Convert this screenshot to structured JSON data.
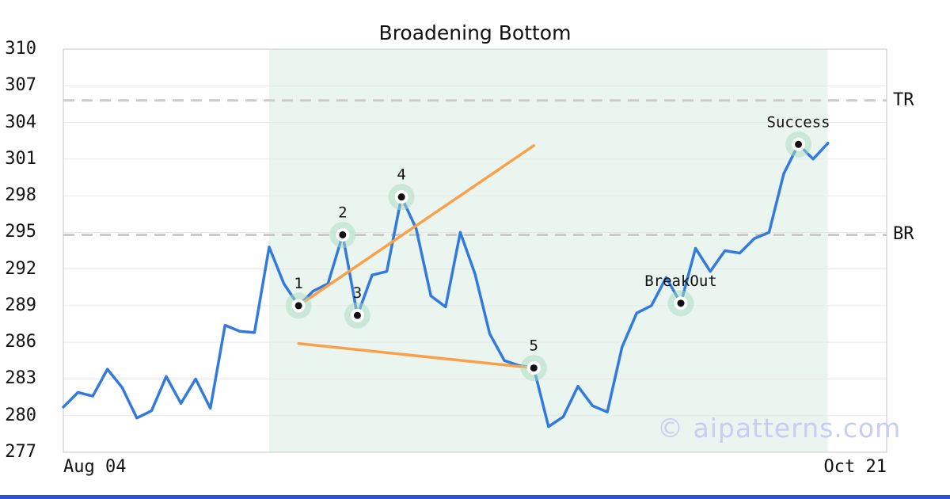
{
  "chart_data": {
    "type": "line",
    "title": "Broadening Bottom",
    "watermark": "© aipatterns.com",
    "x_axis": {
      "start_label": "Aug 04",
      "end_label": "Oct 21",
      "total_days": 56
    },
    "y_axis": {
      "min": 277,
      "max": 310,
      "tick_step": 3,
      "ticks": [
        277,
        280,
        283,
        286,
        289,
        292,
        295,
        298,
        301,
        304,
        307,
        310
      ]
    },
    "levels": [
      {
        "label": "TR",
        "value": 305.8
      },
      {
        "label": "BR",
        "value": 294.8
      }
    ],
    "pattern_region": {
      "start_day": 14,
      "end_day": 52
    },
    "series": {
      "name": "Price",
      "values": [
        280.7,
        281.9,
        281.6,
        283.8,
        282.3,
        279.8,
        280.4,
        283.2,
        281.0,
        283.0,
        280.6,
        287.4,
        286.9,
        286.8,
        293.8,
        290.8,
        289.0,
        290.2,
        290.8,
        294.8,
        288.2,
        291.5,
        291.8,
        297.9,
        295.3,
        289.8,
        288.9,
        295.0,
        291.6,
        286.7,
        284.5,
        284.1,
        283.9,
        279.1,
        279.9,
        282.4,
        280.8,
        280.3,
        285.6,
        288.4,
        289.0,
        291.3,
        289.2,
        293.7,
        291.8,
        293.5,
        293.3,
        294.5,
        295.0,
        299.8,
        302.2,
        301.0,
        302.3
      ]
    },
    "trendlines": [
      {
        "name": "upper-broadening-line",
        "from_day": 16,
        "from_price": 289.0,
        "to_day": 32,
        "to_price": 302.1
      },
      {
        "name": "lower-broadening-line",
        "from_day": 16,
        "from_price": 285.9,
        "to_day": 32,
        "to_price": 283.9
      }
    ],
    "annotations": [
      {
        "label": "1",
        "day": 16,
        "price": 289.0
      },
      {
        "label": "2",
        "day": 19,
        "price": 294.8
      },
      {
        "label": "3",
        "day": 20,
        "price": 288.2
      },
      {
        "label": "4",
        "day": 23,
        "price": 297.9
      },
      {
        "label": "5",
        "day": 32,
        "price": 283.9
      },
      {
        "label": "BreakOut",
        "day": 42,
        "price": 289.2
      },
      {
        "label": "Success",
        "day": 50,
        "price": 302.2
      }
    ],
    "colors": {
      "price_line": "#337add",
      "trendline": "#f9a04a",
      "pattern_region": "#eaf5ef",
      "marker_halo": "#a9dcc0",
      "marker_dot": "#111111",
      "dashed_level": "#cbcbcb",
      "grid": "#e8e8e8",
      "border": "#d4d4d4",
      "watermark_color": "#c8cdf2",
      "bottom_bar": "#2a52d4"
    }
  }
}
